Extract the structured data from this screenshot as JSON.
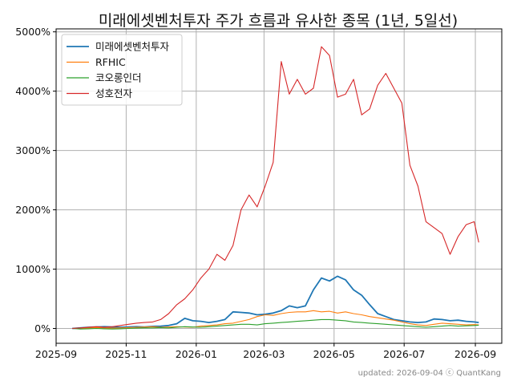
{
  "chart_data": {
    "type": "line",
    "title": "미래에셋벤처투자 주가 흐름과 유사한 종목 (1년, 5일선)",
    "xlabel": "",
    "ylabel": "",
    "x_ticks": [
      "2025-09",
      "2025-11",
      "2026-01",
      "2026-03",
      "2026-05",
      "2026-07",
      "2026-09"
    ],
    "y_ticks": [
      "0%",
      "1000%",
      "2000%",
      "3000%",
      "4000%",
      "5000%"
    ],
    "ylim": [
      -250,
      5050
    ],
    "grid": true,
    "legend_position": "top-left",
    "footer": "updated: 2026-09-04 ⓒ QuantKang",
    "x": [
      "2025-09-15",
      "2025-09-22",
      "2025-09-29",
      "2025-10-06",
      "2025-10-13",
      "2025-10-20",
      "2025-10-27",
      "2025-11-03",
      "2025-11-10",
      "2025-11-17",
      "2025-11-24",
      "2025-12-01",
      "2025-12-08",
      "2025-12-15",
      "2025-12-22",
      "2025-12-29",
      "2026-01-05",
      "2026-01-12",
      "2026-01-19",
      "2026-01-26",
      "2026-02-02",
      "2026-02-09",
      "2026-02-16",
      "2026-02-23",
      "2026-03-02",
      "2026-03-09",
      "2026-03-16",
      "2026-03-23",
      "2026-03-30",
      "2026-04-06",
      "2026-04-13",
      "2026-04-20",
      "2026-04-27",
      "2026-05-04",
      "2026-05-11",
      "2026-05-18",
      "2026-05-25",
      "2026-06-01",
      "2026-06-08",
      "2026-06-15",
      "2026-06-22",
      "2026-06-29",
      "2026-07-06",
      "2026-07-13",
      "2026-07-20",
      "2026-07-27",
      "2026-08-03",
      "2026-08-10",
      "2026-08-17",
      "2026-08-24",
      "2026-08-31",
      "2026-09-04"
    ],
    "series": [
      {
        "name": "미래에셋벤처투자",
        "color": "#1f77b4",
        "values": [
          0,
          10,
          20,
          25,
          30,
          25,
          20,
          25,
          30,
          25,
          35,
          40,
          50,
          80,
          170,
          130,
          120,
          100,
          120,
          150,
          280,
          270,
          260,
          230,
          240,
          260,
          300,
          380,
          350,
          380,
          650,
          850,
          800,
          880,
          820,
          650,
          560,
          400,
          250,
          200,
          150,
          130,
          110,
          100,
          110,
          160,
          150,
          130,
          140,
          120,
          110,
          100
        ]
      },
      {
        "name": "RFHIC",
        "color": "#ff7f0e",
        "values": [
          0,
          5,
          10,
          15,
          10,
          5,
          10,
          15,
          20,
          25,
          30,
          20,
          25,
          30,
          25,
          20,
          40,
          50,
          60,
          80,
          90,
          120,
          150,
          200,
          230,
          220,
          250,
          270,
          280,
          280,
          300,
          280,
          290,
          260,
          280,
          250,
          230,
          200,
          180,
          160,
          140,
          110,
          80,
          60,
          50,
          70,
          90,
          80,
          70,
          60,
          65,
          60
        ]
      },
      {
        "name": "코오롱인더",
        "color": "#2ca02c",
        "values": [
          0,
          -10,
          -5,
          0,
          -5,
          -10,
          -5,
          0,
          5,
          10,
          10,
          15,
          10,
          20,
          30,
          25,
          20,
          30,
          40,
          50,
          60,
          70,
          70,
          60,
          80,
          90,
          100,
          110,
          120,
          130,
          140,
          150,
          150,
          140,
          130,
          110,
          100,
          90,
          80,
          70,
          60,
          50,
          40,
          30,
          20,
          30,
          40,
          50,
          40,
          45,
          50,
          55
        ]
      },
      {
        "name": "성호전자",
        "color": "#d62728",
        "values": [
          0,
          10,
          20,
          30,
          20,
          30,
          50,
          70,
          90,
          100,
          110,
          150,
          250,
          400,
          500,
          650,
          850,
          1000,
          1250,
          1150,
          1400,
          2000,
          2250,
          2050,
          2400,
          2800,
          4500,
          3950,
          4200,
          3950,
          4050,
          4750,
          4600,
          3900,
          3950,
          4200,
          3600,
          3700,
          4100,
          4300,
          4050,
          3800,
          2750,
          2400,
          1800,
          1700,
          1600,
          1250,
          1550,
          1750,
          1800,
          1450
        ]
      }
    ]
  }
}
